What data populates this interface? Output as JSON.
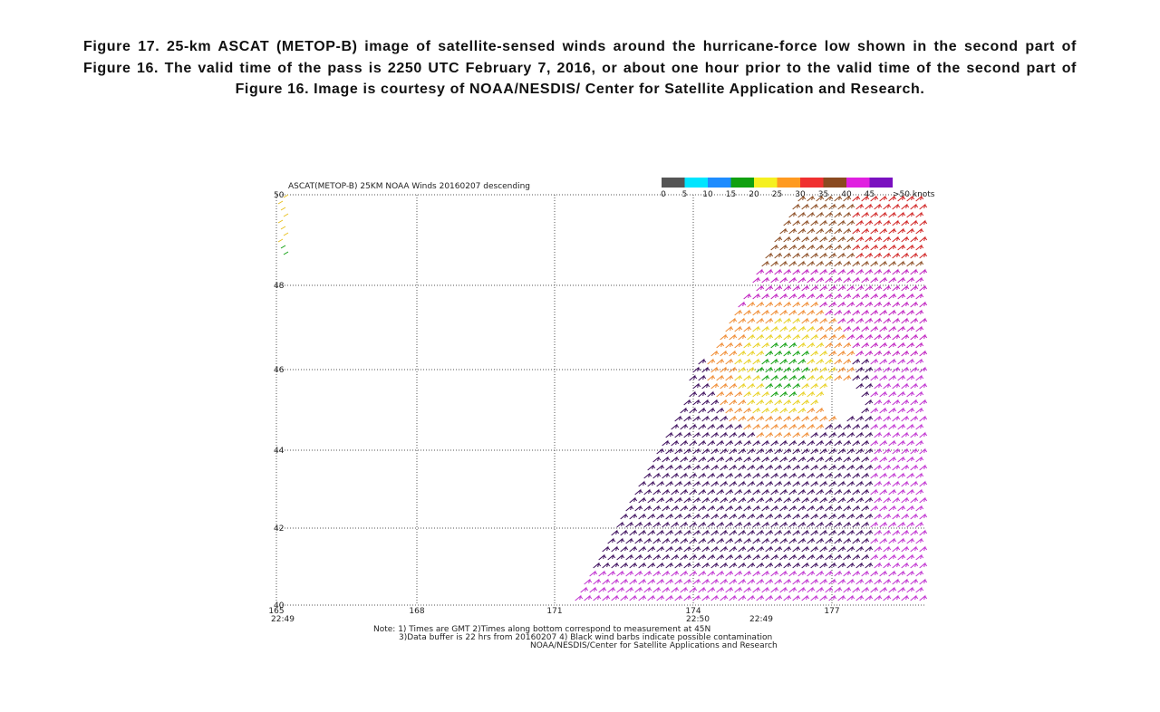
{
  "caption": "Figure 17.  25-km ASCAT (METOP-B) image of satellite-sensed winds around the hurricane-force low shown in the second part of Figure 16.  The valid time of the pass is 2250 UTC February 7, 2016, or about one hour prior to the valid time of the second part of Figure 16.  Image is courtesy of NOAA/NESDIS/ Center for Satellite Application and Research.",
  "figure": {
    "title": "ASCAT(METOP-B) 25KM NOAA Winds 20160207 descending",
    "legend_labels": [
      "0",
      "5",
      "10",
      "15",
      "20",
      "25",
      "30",
      "35",
      "40",
      "45",
      ">50 knots"
    ],
    "lat_labels": [
      "50",
      "48",
      "46",
      "44",
      "42",
      "40"
    ],
    "lon_labels": [
      "165",
      "168",
      "171",
      "174",
      "177"
    ],
    "time_labels": [
      "22:49",
      "22:50",
      "22:49"
    ],
    "notes": [
      "Note: 1) Times are GMT 2)Times along bottom correspond to measurement at 45N",
      "3)Data buffer is 22 hrs from 20160207 4) Black wind barbs indicate possible contamination",
      "NOAA/NESDIS/Center for Satellite Applications and Research"
    ]
  }
}
